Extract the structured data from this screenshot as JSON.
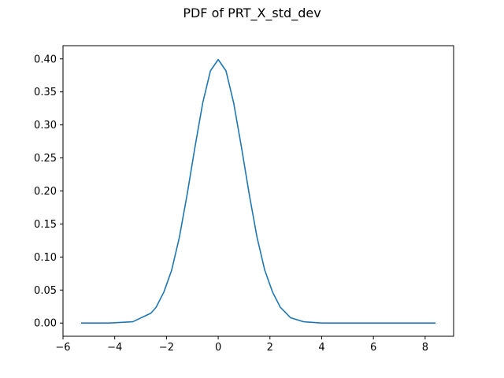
{
  "chart_data": {
    "type": "line",
    "title": "PDF of PRT_X_std_dev",
    "xlabel": "",
    "ylabel": "",
    "xlim": [
      -6.0,
      9.1
    ],
    "ylim": [
      -0.02,
      0.42
    ],
    "x_ticks": [
      -6,
      -4,
      -2,
      0,
      2,
      4,
      6,
      8
    ],
    "x_tick_labels": [
      "−6",
      "−4",
      "−2",
      "0",
      "2",
      "4",
      "6",
      "8"
    ],
    "y_ticks": [
      0.0,
      0.05,
      0.1,
      0.15,
      0.2,
      0.25,
      0.3,
      0.35,
      0.4
    ],
    "y_tick_labels": [
      "0.00",
      "0.05",
      "0.10",
      "0.15",
      "0.20",
      "0.25",
      "0.30",
      "0.35",
      "0.40"
    ],
    "grid": false,
    "line_color": "#1f77b4",
    "series": [
      {
        "x": [
          -5.3,
          -4.2,
          -3.3,
          -2.6,
          -2.4,
          -2.1,
          -1.8,
          -1.5,
          -1.2,
          -0.9,
          -0.6,
          -0.3,
          0.0,
          0.3,
          0.6,
          0.9,
          1.2,
          1.5,
          1.8,
          2.1,
          2.4,
          2.8,
          3.3,
          4.0,
          5.0,
          6.0,
          7.0,
          8.4
        ],
        "y": [
          0.0,
          0.0,
          0.002,
          0.015,
          0.024,
          0.047,
          0.08,
          0.13,
          0.195,
          0.266,
          0.333,
          0.382,
          0.399,
          0.382,
          0.333,
          0.266,
          0.195,
          0.13,
          0.08,
          0.047,
          0.024,
          0.008,
          0.002,
          0.0,
          0.0,
          0.0,
          0.0,
          0.0
        ]
      }
    ]
  }
}
